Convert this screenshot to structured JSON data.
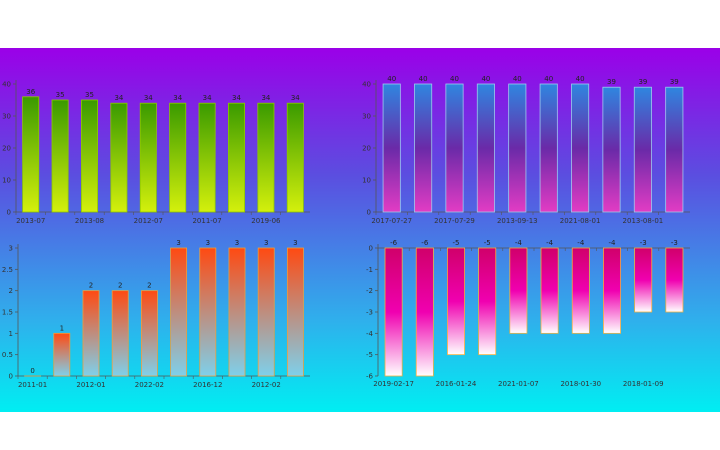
{
  "chart_data": [
    {
      "type": "bar",
      "title": "",
      "categories": [
        "2013-07",
        "",
        "2013-08",
        "",
        "2012-07",
        "",
        "2011-07",
        "",
        "2019-06",
        ""
      ],
      "values": [
        36,
        35,
        35,
        34,
        34,
        34,
        34,
        34,
        34,
        34
      ],
      "ylim": [
        0,
        40
      ],
      "yticks": [
        0,
        10,
        20,
        30,
        40
      ],
      "xlabel": "",
      "ylabel": "",
      "colors": {
        "top": "#3a9a00",
        "bottom": "#d4f00c",
        "stroke": "#8fc800"
      }
    },
    {
      "type": "bar",
      "title": "",
      "categories": [
        "2017-07-27",
        "",
        "2017-07-29",
        "",
        "2013-09-13",
        "",
        "2021-08-01",
        "",
        "2013-08-01",
        ""
      ],
      "values": [
        40,
        40,
        40,
        40,
        40,
        40,
        40,
        39,
        39,
        39
      ],
      "ylim": [
        0,
        40
      ],
      "yticks": [
        0,
        10,
        20,
        30,
        40
      ],
      "xlabel": "",
      "ylabel": "",
      "colors": {
        "top": "#2f86e0",
        "mid": "#6a2aa8",
        "bottom": "#e23cc4",
        "stroke": "#9fc9ee"
      }
    },
    {
      "type": "bar",
      "title": "",
      "categories": [
        "2011-01",
        "",
        "2012-01",
        "",
        "2022-02",
        "",
        "2016-12",
        "",
        "2012-02",
        ""
      ],
      "values": [
        0,
        1,
        2,
        2,
        2,
        3,
        3,
        3,
        3,
        3
      ],
      "ylim": [
        0,
        3
      ],
      "yticks": [
        0,
        0.5,
        1,
        1.5,
        2,
        2.5,
        3
      ],
      "xlabel": "",
      "ylabel": "",
      "colors": {
        "top": "#ff4a12",
        "bottom": "#7fd0ea",
        "stroke": "#e8a040"
      }
    },
    {
      "type": "bar",
      "title": "",
      "categories": [
        "2019-02-17",
        "",
        "2016-01-24",
        "",
        "2021-01-07",
        "",
        "2018-01-30",
        "",
        "2018-01-09",
        ""
      ],
      "values": [
        -6,
        -6,
        -5,
        -5,
        -4,
        -4,
        -4,
        -4,
        -3,
        -3
      ],
      "ylim": [
        -6,
        0
      ],
      "yticks": [
        0,
        -1,
        -2,
        -3,
        -4,
        -5,
        -6
      ],
      "xlabel": "",
      "ylabel": "",
      "colors": {
        "top": "#d0006a",
        "mid": "#f000b0",
        "bottom": "#ffffff",
        "stroke": "#f0b040"
      }
    }
  ]
}
